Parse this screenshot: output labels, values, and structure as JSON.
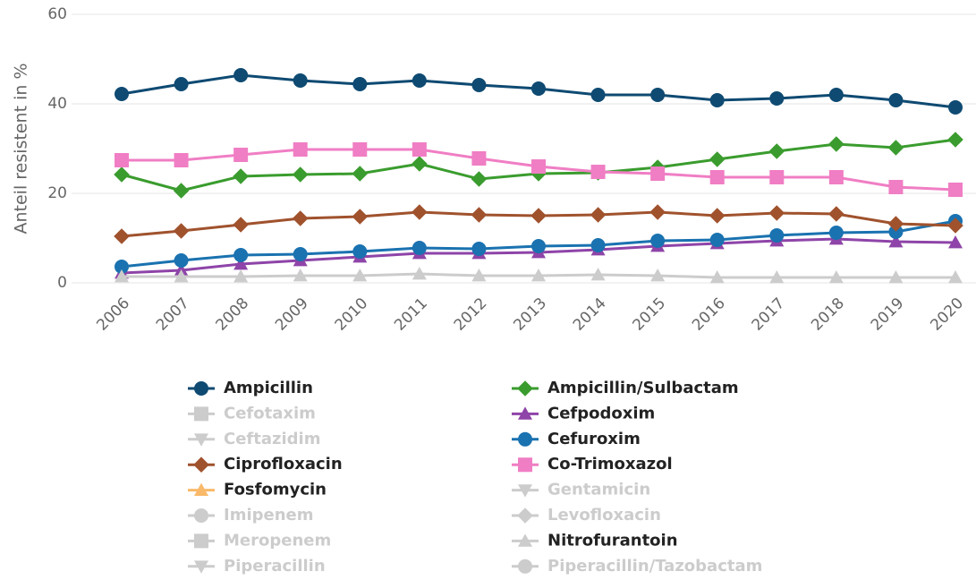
{
  "chart_data": {
    "type": "line",
    "y_label": "Anteil resistent in %",
    "categories": [
      "2006",
      "2007",
      "2008",
      "2009",
      "2010",
      "2011",
      "2012",
      "2013",
      "2014",
      "2015",
      "2016",
      "2017",
      "2018",
      "2019",
      "2020"
    ],
    "ylim": [
      0,
      60
    ],
    "yticks": [
      0,
      20,
      40,
      60
    ],
    "grid": true,
    "legend": "bottom",
    "series": [
      {
        "name": "Ampicillin",
        "symbol": "circle",
        "color": "#0e4a72",
        "visible": true,
        "values": [
          42.2,
          44.4,
          46.4,
          45.2,
          44.4,
          45.2,
          44.2,
          43.4,
          42,
          42,
          40.8,
          41.2,
          42,
          40.8,
          39.2
        ]
      },
      {
        "name": "Ampicillin/Sulbactam",
        "symbol": "diamond",
        "color": "#3a9c2e",
        "visible": true,
        "values": [
          24.2,
          20.6,
          23.8,
          24.2,
          24.4,
          26.6,
          23.2,
          24.4,
          24.6,
          25.8,
          27.6,
          29.4,
          31,
          30.2,
          32
        ]
      },
      {
        "name": "Cefotaxim",
        "symbol": "square",
        "visible": false
      },
      {
        "name": "Cefpodoxim",
        "symbol": "triangle",
        "color": "#8e44a8",
        "visible": true,
        "values": [
          2.2,
          2.8,
          4.2,
          5,
          5.8,
          6.6,
          6.6,
          6.8,
          7.4,
          8.2,
          8.8,
          9.4,
          9.8,
          9.2,
          9
        ]
      },
      {
        "name": "Ceftazidim",
        "symbol": "triangle-down",
        "visible": false
      },
      {
        "name": "Cefuroxim",
        "symbol": "circle",
        "color": "#1a72b0",
        "visible": true,
        "values": [
          3.6,
          5,
          6.2,
          6.4,
          7,
          7.8,
          7.6,
          8.2,
          8.4,
          9.4,
          9.6,
          10.6,
          11.2,
          11.4,
          13.8
        ]
      },
      {
        "name": "Ciprofloxacin",
        "symbol": "diamond",
        "color": "#a0522d",
        "visible": true,
        "values": [
          10.4,
          11.6,
          13,
          14.4,
          14.8,
          15.8,
          15.2,
          15,
          15.2,
          15.8,
          15,
          15.6,
          15.4,
          13.2,
          12.8
        ]
      },
      {
        "name": "Co-Trimoxazol",
        "symbol": "square",
        "color": "#f07ec4",
        "visible": true,
        "values": [
          27.4,
          27.4,
          28.6,
          29.8,
          29.8,
          29.8,
          27.8,
          26,
          24.8,
          24.4,
          23.6,
          23.6,
          23.6,
          21.4,
          20.8
        ]
      },
      {
        "name": "Fosfomycin",
        "symbol": "triangle",
        "color": "#f9b96a",
        "visible": true,
        "values": [
          null,
          null,
          null,
          null,
          null,
          null,
          null,
          null,
          null,
          null,
          null,
          null,
          null,
          null,
          null
        ]
      },
      {
        "name": "Gentamicin",
        "symbol": "triangle-down",
        "visible": false
      },
      {
        "name": "Imipenem",
        "symbol": "circle",
        "visible": false
      },
      {
        "name": "Levofloxacin",
        "symbol": "diamond",
        "visible": false
      },
      {
        "name": "Meropenem",
        "symbol": "square",
        "visible": false
      },
      {
        "name": "Nitrofurantoin",
        "symbol": "triangle",
        "color": "#cccccc",
        "visible": true,
        "values": [
          1.4,
          1.4,
          1.4,
          1.6,
          1.6,
          2,
          1.6,
          1.6,
          1.8,
          1.6,
          1.2,
          1.2,
          1.2,
          1.2,
          1.2
        ]
      },
      {
        "name": "Piperacillin",
        "symbol": "triangle-down",
        "visible": false
      },
      {
        "name": "Piperacillin/Tazobactam",
        "symbol": "circle",
        "visible": false
      }
    ]
  }
}
